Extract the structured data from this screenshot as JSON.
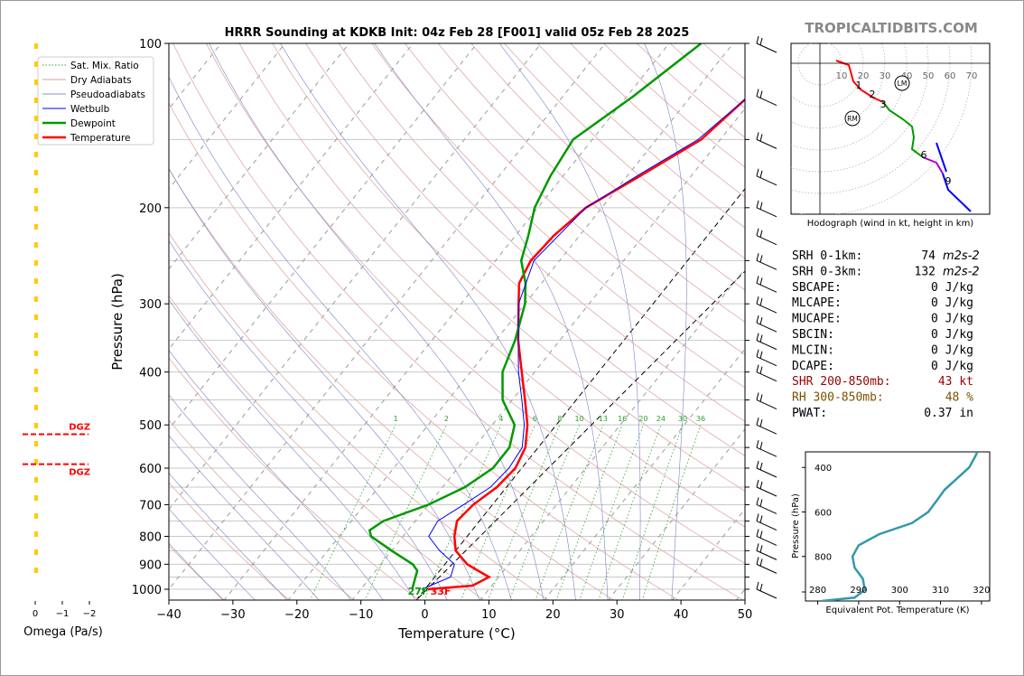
{
  "title": "HRRR Sounding at KDKB Init: 04z Feb 28 [F001] valid 05z Feb 28 2025",
  "watermark": "TROPICALTIDBITS.COM",
  "chart_data": [
    {
      "type": "line",
      "name": "skew-t",
      "xlabel": "Temperature (°C)",
      "ylabel": "Pressure (hPa)",
      "xlim": [
        -40,
        50
      ],
      "ylim": [
        1050,
        100
      ],
      "y_scale": "log",
      "x_ticks": [
        "−40",
        "−30",
        "−20",
        "−10",
        "0",
        "10",
        "20",
        "30",
        "40",
        "50"
      ],
      "y_ticks": [
        "100",
        "200",
        "300",
        "400",
        "500",
        "600",
        "700",
        "800",
        "900",
        "1000"
      ],
      "legend": {
        "position": "top-left",
        "entries": [
          {
            "label": "Sat. Mix. Ratio",
            "color": "#2ca02c",
            "style": "dotted"
          },
          {
            "label": "Dry Adiabats",
            "color": "#d6a0a0",
            "style": "solid"
          },
          {
            "label": "Pseudoadiabats",
            "color": "#9090c0",
            "style": "solid"
          },
          {
            "label": "Wetbulb",
            "color": "#0000ff",
            "style": "solid"
          },
          {
            "label": "Dewpoint",
            "color": "#009900",
            "style": "solid"
          },
          {
            "label": "Temperature",
            "color": "#ff0000",
            "style": "solid"
          }
        ]
      },
      "mixing_ratio_labels": [
        "1",
        "2",
        "4",
        "6",
        "8",
        "10",
        "13",
        "16",
        "20",
        "24",
        "30",
        "36"
      ],
      "mixing_ratio_values": [
        1,
        2,
        4,
        6,
        8,
        10,
        13,
        16,
        20,
        24,
        30,
        36
      ],
      "surface_labels": {
        "dewpoint": "27F",
        "temperature": "33F"
      },
      "series": [
        {
          "name": "Temperature",
          "color": "#ff0000",
          "points": [
            [
              1000,
              0.5
            ],
            [
              985,
              7
            ],
            [
              950,
              8.5
            ],
            [
              925,
              6
            ],
            [
              900,
              3.5
            ],
            [
              850,
              0
            ],
            [
              800,
              -2
            ],
            [
              750,
              -3.5
            ],
            [
              700,
              -3
            ],
            [
              650,
              -1.5
            ],
            [
              600,
              -1
            ],
            [
              550,
              -2
            ],
            [
              500,
              -4.5
            ],
            [
              450,
              -8
            ],
            [
              400,
              -12
            ],
            [
              350,
              -16.5
            ],
            [
              300,
              -21
            ],
            [
              275,
              -23.5
            ],
            [
              250,
              -24.5
            ],
            [
              225,
              -24
            ],
            [
              200,
              -22.5
            ],
            [
              175,
              -18
            ],
            [
              150,
              -13
            ],
            [
              125,
              -11
            ],
            [
              100,
              -14
            ]
          ]
        },
        {
          "name": "Dewpoint",
          "color": "#009900",
          "points": [
            [
              1000,
              -2
            ],
            [
              950,
              -3
            ],
            [
              925,
              -3.5
            ],
            [
              900,
              -5
            ],
            [
              850,
              -10
            ],
            [
              800,
              -15
            ],
            [
              780,
              -16
            ],
            [
              750,
              -15
            ],
            [
              700,
              -10
            ],
            [
              650,
              -6.5
            ],
            [
              600,
              -4.5
            ],
            [
              550,
              -4.5
            ],
            [
              500,
              -6.5
            ],
            [
              450,
              -11.5
            ],
            [
              400,
              -15
            ],
            [
              350,
              -17
            ],
            [
              300,
              -20
            ],
            [
              275,
              -22.5
            ],
            [
              250,
              -26
            ],
            [
              225,
              -28
            ],
            [
              200,
              -30.5
            ],
            [
              175,
              -32
            ],
            [
              150,
              -33
            ],
            [
              125,
              -29
            ],
            [
              100,
              -25
            ]
          ]
        },
        {
          "name": "Wetbulb",
          "color": "#0000ff",
          "points": [
            [
              1000,
              -0.5
            ],
            [
              950,
              2.5
            ],
            [
              900,
              1.5
            ],
            [
              850,
              -2.5
            ],
            [
              800,
              -6
            ],
            [
              750,
              -6.5
            ],
            [
              700,
              -4.5
            ],
            [
              650,
              -2.5
            ],
            [
              600,
              -2
            ],
            [
              550,
              -2.5
            ],
            [
              500,
              -5
            ],
            [
              450,
              -8.5
            ],
            [
              400,
              -12.5
            ],
            [
              350,
              -16.5
            ],
            [
              300,
              -21
            ],
            [
              250,
              -24
            ],
            [
              200,
              -22.5
            ],
            [
              175,
              -18.5
            ],
            [
              150,
              -13.5
            ],
            [
              125,
              -11
            ],
            [
              100,
              -14.5
            ]
          ]
        }
      ]
    },
    {
      "type": "line",
      "name": "hodograph",
      "caption": "Hodograph (wind in kt, height in km)",
      "ring_labels": [
        "10",
        "20",
        "30",
        "40",
        "50",
        "60",
        "70"
      ],
      "ring_values": [
        10,
        20,
        30,
        40,
        50,
        60,
        70
      ],
      "height_labels": [
        "1",
        "2",
        "3",
        "6",
        "9"
      ],
      "markers": [
        "LM",
        "RM"
      ]
    },
    {
      "type": "line",
      "name": "theta-e",
      "xlabel": "Equivalent Pot. Temperature (K)",
      "ylabel": "Pressure (hPa)",
      "xlim": [
        277,
        322
      ],
      "ylim": [
        1000,
        330
      ],
      "x_ticks": [
        "280",
        "290",
        "300",
        "310",
        "320"
      ],
      "y_ticks": [
        "400",
        "600",
        "800"
      ],
      "series": [
        {
          "name": "theta-e",
          "color": "#3399aa",
          "points": [
            [
              1000,
              281
            ],
            [
              985,
              289
            ],
            [
              950,
              291.5
            ],
            [
              900,
              291
            ],
            [
              850,
              289
            ],
            [
              800,
              288.5
            ],
            [
              750,
              290
            ],
            [
              700,
              295
            ],
            [
              650,
              303
            ],
            [
              600,
              307
            ],
            [
              550,
              309
            ],
            [
              500,
              311
            ],
            [
              450,
              314
            ],
            [
              400,
              317
            ],
            [
              350,
              318.5
            ],
            [
              330,
              319
            ]
          ]
        }
      ]
    },
    {
      "type": "bar",
      "name": "omega",
      "xlabel": "Omega (Pa/s)",
      "x_ticks": [
        "0",
        "−1",
        "−2"
      ],
      "dgz_label": "DGZ"
    }
  ],
  "stats": [
    {
      "label": "SRH 0-1km:",
      "value": "74",
      "unit": "m2s-2",
      "color": "#000000"
    },
    {
      "label": "SRH 0-3km:",
      "value": "132",
      "unit": "m2s-2",
      "color": "#000000"
    },
    {
      "label": "SBCAPE:",
      "value": "0 J/kg",
      "color": "#000000"
    },
    {
      "label": "MLCAPE:",
      "value": "0 J/kg",
      "color": "#000000"
    },
    {
      "label": "MUCAPE:",
      "value": "0 J/kg",
      "color": "#000000"
    },
    {
      "label": "SBCIN:",
      "value": "0 J/kg",
      "color": "#000000"
    },
    {
      "label": "MLCIN:",
      "value": "0 J/kg",
      "color": "#000000"
    },
    {
      "label": "DCAPE:",
      "value": "0 J/kg",
      "color": "#000000"
    },
    {
      "label": "SHR 200-850mb:",
      "value": "43 kt",
      "color": "#990000"
    },
    {
      "label": "RH 300-850mb:",
      "value": "48 %",
      "color": "#7a5200"
    },
    {
      "label": "PWAT:",
      "value": "0.37 in",
      "color": "#000000"
    }
  ]
}
